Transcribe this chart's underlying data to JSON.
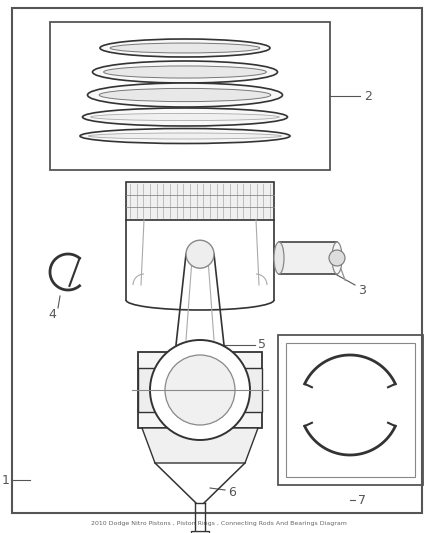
{
  "bg_color": "#ffffff",
  "outer_border_color": "#555555",
  "line_color": "#333333",
  "label_color": "#555555",
  "title": "2010 Dodge Nitro Pistons , Piston Rings , Connecting Rods And Bearings Diagram"
}
